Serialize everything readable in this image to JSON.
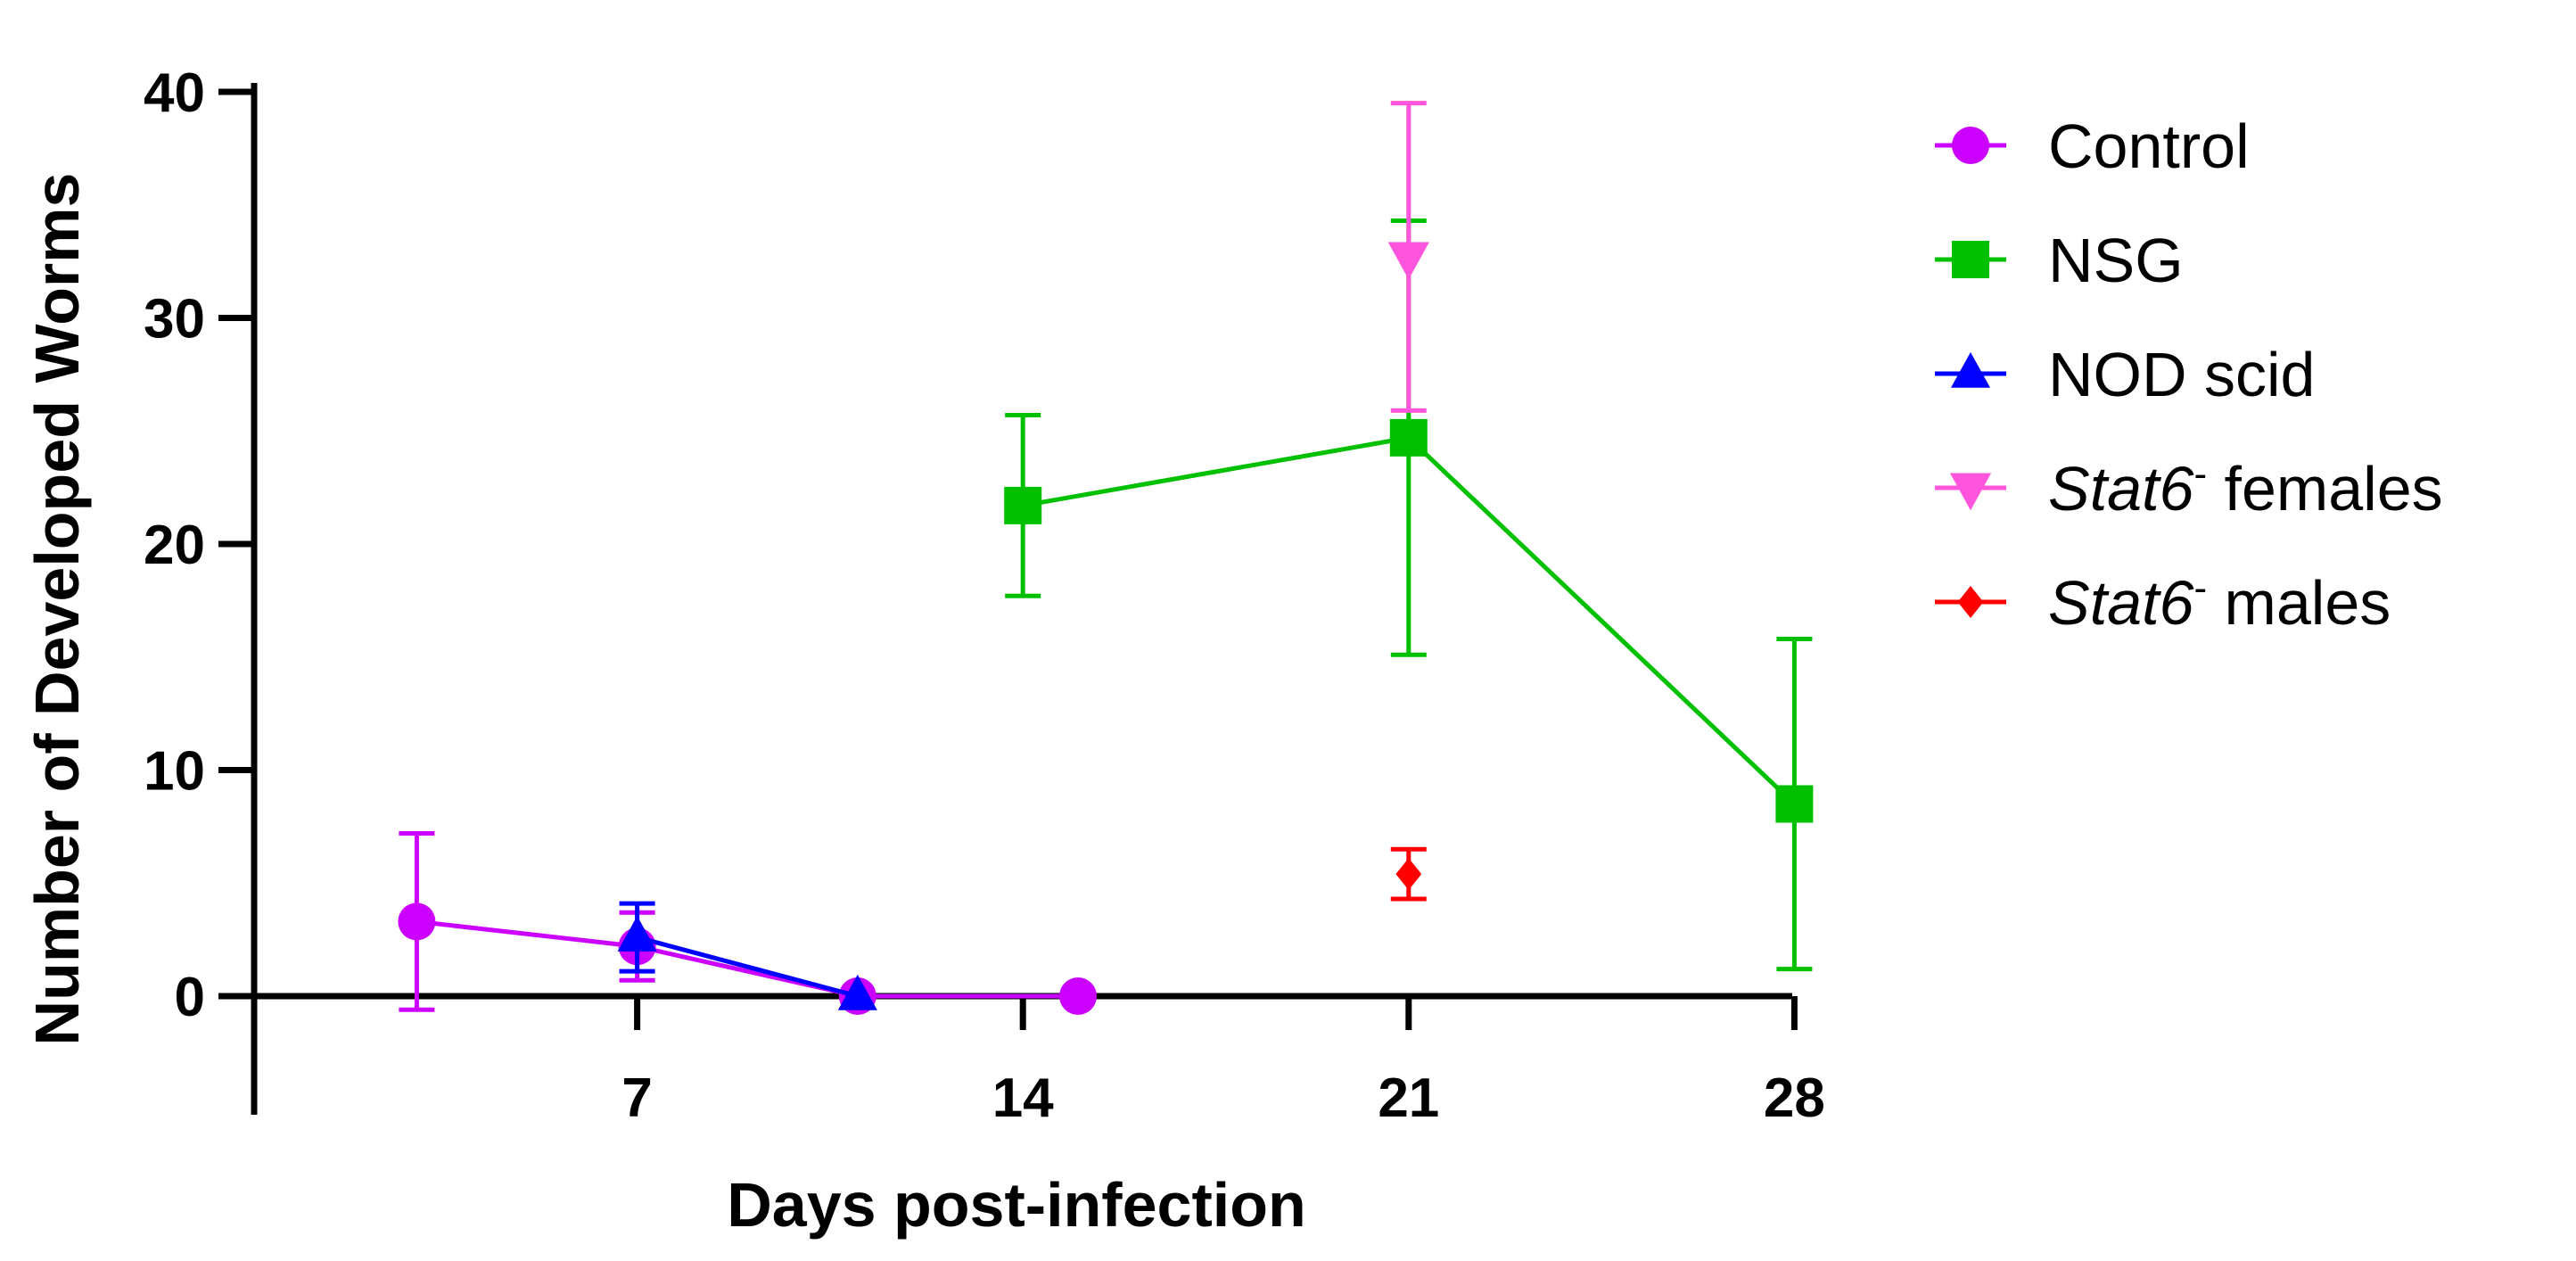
{
  "chart_data": {
    "type": "line",
    "xlabel": "Days post-infection",
    "ylabel": "Number of Developed Worms",
    "xlim": [
      0,
      28
    ],
    "ylim": [
      0,
      40
    ],
    "x_ticks": [
      7,
      14,
      21,
      28
    ],
    "y_ticks": [
      0,
      10,
      20,
      30,
      40
    ],
    "grid": false,
    "legend_position": "right",
    "series": [
      {
        "name": "Control",
        "color": "#cc00ff",
        "marker": "circle",
        "connected": true,
        "points": [
          {
            "x": 3,
            "y": 3.3,
            "err": 3.9
          },
          {
            "x": 7,
            "y": 2.2,
            "err": 1.5
          },
          {
            "x": 11,
            "y": 0,
            "err": 0
          },
          {
            "x": 15,
            "y": 0,
            "err": 0
          }
        ]
      },
      {
        "name": "NSG",
        "color": "#00c000",
        "marker": "square",
        "connected": true,
        "points": [
          {
            "x": 14,
            "y": 21.7,
            "err": 4.0
          },
          {
            "x": 21,
            "y": 24.7,
            "err": 9.6
          },
          {
            "x": 28,
            "y": 8.5,
            "err": 7.3
          }
        ]
      },
      {
        "name": "NOD scid",
        "color": "#0000ff",
        "marker": "triangle-up",
        "connected": true,
        "points": [
          {
            "x": 7,
            "y": 2.6,
            "err": 1.5
          },
          {
            "x": 11,
            "y": 0,
            "err": 0
          }
        ]
      },
      {
        "name_italic": "Stat6",
        "name_sup": "-",
        "name_rest": " females",
        "color": "#ff55dd",
        "marker": "triangle-down",
        "connected": false,
        "points": [
          {
            "x": 21,
            "y": 32.7,
            "err": 6.8
          }
        ]
      },
      {
        "name_italic": "Stat6",
        "name_sup": "-",
        "name_rest": " males",
        "color": "#ff0000",
        "marker": "diamond",
        "connected": false,
        "points": [
          {
            "x": 21,
            "y": 5.4,
            "err": 1.1
          }
        ]
      }
    ]
  }
}
